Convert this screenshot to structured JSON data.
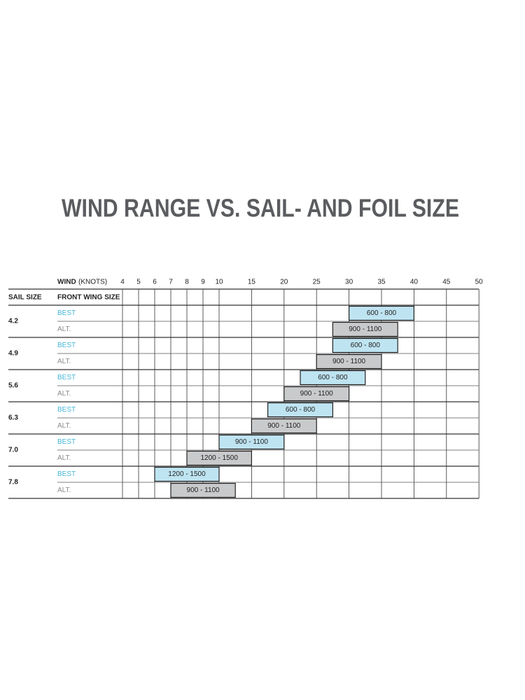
{
  "chart_data": {
    "type": "range",
    "title": "WIND RANGE VS. SAIL- AND FOIL SIZE",
    "x_label": "WIND",
    "x_unit": "(KNOTS)",
    "row_header": "SAIL SIZE",
    "sub_header": "FRONT WING SIZE",
    "xlim": [
      4,
      50
    ],
    "xticks": [
      4,
      5,
      6,
      7,
      8,
      9,
      10,
      15,
      20,
      25,
      30,
      35,
      40,
      45,
      50
    ],
    "rows": [
      {
        "sail": "4.2",
        "options": [
          {
            "name": "BEST",
            "color": "#bfe4f1",
            "label": "600 - 800",
            "range": [
              30,
              40
            ]
          },
          {
            "name": "ALT.",
            "color": "#c9cacc",
            "label": "900 - 1100",
            "range": [
              27.5,
              37.5
            ]
          }
        ]
      },
      {
        "sail": "4.9",
        "options": [
          {
            "name": "BEST",
            "color": "#bfe4f1",
            "label": "600 - 800",
            "range": [
              27.5,
              37.5
            ]
          },
          {
            "name": "ALT.",
            "color": "#c9cacc",
            "label": "900 - 1100",
            "range": [
              25,
              35
            ]
          }
        ]
      },
      {
        "sail": "5.6",
        "options": [
          {
            "name": "BEST",
            "color": "#bfe4f1",
            "label": "600 - 800",
            "range": [
              22.5,
              32.5
            ]
          },
          {
            "name": "ALT.",
            "color": "#c9cacc",
            "label": "900 - 1100",
            "range": [
              20,
              30
            ]
          }
        ]
      },
      {
        "sail": "6.3",
        "options": [
          {
            "name": "BEST",
            "color": "#bfe4f1",
            "label": "600 - 800",
            "range": [
              17.5,
              27.5
            ]
          },
          {
            "name": "ALT.",
            "color": "#c9cacc",
            "label": "900 - 1100",
            "range": [
              15,
              25
            ]
          }
        ]
      },
      {
        "sail": "7.0",
        "options": [
          {
            "name": "BEST",
            "color": "#bfe4f1",
            "label": "900 - 1100",
            "range": [
              10,
              20
            ]
          },
          {
            "name": "ALT.",
            "color": "#c9cacc",
            "label": "1200 - 1500",
            "range": [
              8,
              15
            ]
          }
        ]
      },
      {
        "sail": "7.8",
        "options": [
          {
            "name": "BEST",
            "color": "#bfe4f1",
            "label": "1200 - 1500",
            "range": [
              6,
              10
            ]
          },
          {
            "name": "ALT.",
            "color": "#c9cacc",
            "label": "900 - 1100",
            "range": [
              7,
              12.5
            ]
          }
        ]
      }
    ]
  }
}
